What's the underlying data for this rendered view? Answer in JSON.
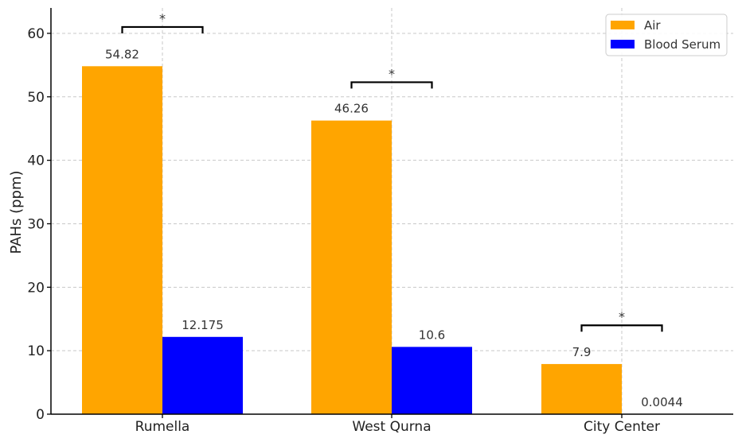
{
  "chart_data": {
    "type": "bar",
    "categories": [
      "Rumella",
      "West Qurna",
      "City Center"
    ],
    "series": [
      {
        "name": "Air",
        "values": [
          54.82,
          46.26,
          7.9
        ],
        "labels": [
          "54.82",
          "46.26",
          "7.9"
        ],
        "color": "#FFA500"
      },
      {
        "name": "Blood Serum",
        "values": [
          12.175,
          10.6,
          0.0044
        ],
        "labels": [
          "12.175",
          "10.6",
          "0.0044"
        ],
        "color": "#0000FF"
      }
    ],
    "ylabel": "PAHs (ppm)",
    "xlabel": "",
    "ylim": [
      0,
      64
    ],
    "yticks": [
      0,
      10,
      20,
      30,
      40,
      50,
      60
    ],
    "grid": true,
    "legend_position": "top-right",
    "significance": [
      {
        "category": "Rumella",
        "marker": "*",
        "bracket_y": 61
      },
      {
        "category": "West Qurna",
        "marker": "*",
        "bracket_y": 52.3
      },
      {
        "category": "City Center",
        "marker": "*",
        "bracket_y": 14
      }
    ]
  }
}
